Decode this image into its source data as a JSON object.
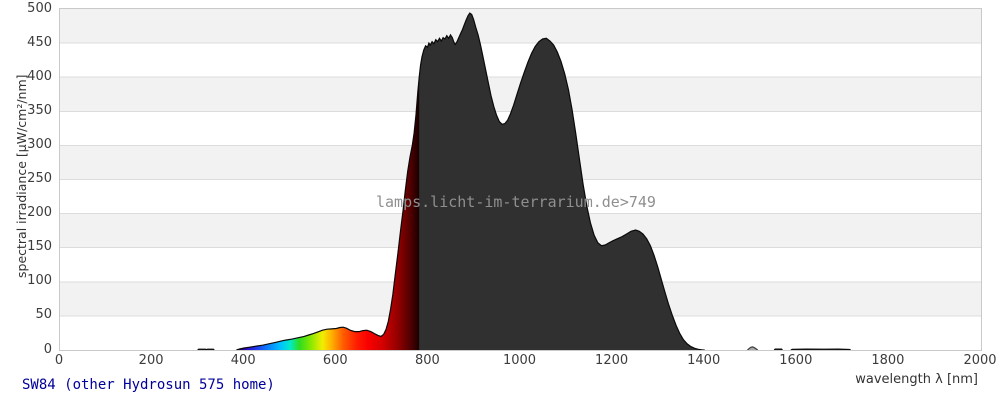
{
  "chart_data": {
    "type": "area",
    "title": "SW84 (other Hydrosun 575 home)",
    "watermark": "lamps.licht-im-terrarium.de>749",
    "xlabel": "wavelength λ [nm]",
    "ylabel": "spectral irradiance [µW/cm²/nm]",
    "xlim": [
      0,
      2000
    ],
    "ylim": [
      0,
      500
    ],
    "x_ticks": [
      0,
      200,
      400,
      600,
      800,
      1000,
      1200,
      1400,
      1600,
      1800,
      2000
    ],
    "y_ticks": [
      0,
      50,
      100,
      150,
      200,
      250,
      300,
      350,
      400,
      450,
      500
    ],
    "y_gridlines": [
      50,
      100,
      150,
      200,
      250,
      300,
      350,
      400,
      450
    ],
    "grid": "horizontal-bands",
    "legend": "none",
    "colors": {
      "ir_fill": "#303030",
      "outline": "#0a0a0a",
      "band_gray": "#f2f2f2",
      "band_white": "#ffffff",
      "gridline": "#dcdcdc",
      "plot_border": "#c9c9c9",
      "tick_text": "#3c3c3c",
      "axis_title_text": "#333333",
      "footer_title_text": "#00009b",
      "watermark_text": "#8f8f8f",
      "ir_bump_fill": "#a8a8a8"
    },
    "spectral_gradient": [
      [
        0.19,
        "#0b0026"
      ],
      [
        0.2,
        "#2b00b4"
      ],
      [
        0.2125,
        "#2136f0"
      ],
      [
        0.225,
        "#0b7bff"
      ],
      [
        0.24,
        "#00c3ff"
      ],
      [
        0.25,
        "#00ecc8"
      ],
      [
        0.26,
        "#2edc1e"
      ],
      [
        0.2725,
        "#8ae800"
      ],
      [
        0.285,
        "#f2ee00"
      ],
      [
        0.295,
        "#ffb000"
      ],
      [
        0.3075,
        "#ff5c00"
      ],
      [
        0.3225,
        "#ff1c00"
      ],
      [
        0.335,
        "#f80000"
      ],
      [
        0.35,
        "#d40000"
      ],
      [
        0.3675,
        "#900000"
      ],
      [
        0.3825,
        "#460000"
      ],
      [
        0.39,
        "#170000"
      ],
      [
        0.3901,
        "#303030"
      ],
      [
        1.0,
        "#303030"
      ]
    ],
    "series": [
      {
        "name": "uv-emission",
        "fill": "#303030",
        "stroke": "#0a0a0a",
        "points": [
          [
            299,
            0
          ],
          [
            301,
            1.2
          ],
          [
            316,
            1.2
          ],
          [
            318,
            0.5
          ],
          [
            320,
            1.2
          ],
          [
            333,
            1.2
          ],
          [
            335,
            0
          ]
        ]
      },
      {
        "name": "main-spectrum",
        "fill": "spectral-gradient",
        "stroke": "#0a0a0a",
        "points": [
          [
            383,
            0
          ],
          [
            390,
            1.5
          ],
          [
            400,
            3
          ],
          [
            410,
            4
          ],
          [
            420,
            5
          ],
          [
            430,
            6
          ],
          [
            440,
            7
          ],
          [
            450,
            8.5
          ],
          [
            460,
            10
          ],
          [
            470,
            11.5
          ],
          [
            480,
            13
          ],
          [
            490,
            14.5
          ],
          [
            500,
            15.5
          ],
          [
            510,
            17
          ],
          [
            520,
            18.5
          ],
          [
            530,
            20
          ],
          [
            540,
            22
          ],
          [
            550,
            24
          ],
          [
            560,
            26.5
          ],
          [
            570,
            29
          ],
          [
            580,
            30.5
          ],
          [
            590,
            31
          ],
          [
            600,
            31.5
          ],
          [
            608,
            33
          ],
          [
            615,
            33.5
          ],
          [
            622,
            32
          ],
          [
            630,
            29
          ],
          [
            640,
            27
          ],
          [
            650,
            27
          ],
          [
            658,
            28.5
          ],
          [
            666,
            29
          ],
          [
            675,
            27
          ],
          [
            683,
            24
          ],
          [
            690,
            21.5
          ],
          [
            697,
            20
          ],
          [
            703,
            23
          ],
          [
            708,
            30
          ],
          [
            713,
            42
          ],
          [
            718,
            60
          ],
          [
            723,
            82
          ],
          [
            728,
            110
          ],
          [
            734,
            143
          ],
          [
            740,
            178
          ],
          [
            745,
            205
          ],
          [
            750,
            235
          ],
          [
            755,
            262
          ],
          [
            760,
            283
          ],
          [
            765,
            300
          ],
          [
            769,
            318
          ],
          [
            773,
            345
          ],
          [
            777,
            378
          ],
          [
            780,
            400
          ],
          [
            783,
            418
          ],
          [
            786,
            430
          ],
          [
            790,
            440
          ],
          [
            794,
            446
          ],
          [
            798,
            444
          ],
          [
            801,
            450
          ],
          [
            804,
            447
          ],
          [
            808,
            452
          ],
          [
            812,
            449
          ],
          [
            816,
            455
          ],
          [
            820,
            452
          ],
          [
            824,
            457
          ],
          [
            828,
            453
          ],
          [
            832,
            458
          ],
          [
            836,
            456
          ],
          [
            840,
            461
          ],
          [
            844,
            457
          ],
          [
            848,
            462
          ],
          [
            852,
            458
          ],
          [
            855,
            452
          ],
          [
            858,
            448
          ],
          [
            862,
            452
          ],
          [
            866,
            458
          ],
          [
            870,
            464
          ],
          [
            874,
            470
          ],
          [
            878,
            477
          ],
          [
            882,
            484
          ],
          [
            886,
            490
          ],
          [
            890,
            494
          ],
          [
            894,
            492
          ],
          [
            898,
            485
          ],
          [
            903,
            473
          ],
          [
            908,
            462
          ],
          [
            913,
            448
          ],
          [
            918,
            432
          ],
          [
            924,
            412
          ],
          [
            930,
            392
          ],
          [
            936,
            373
          ],
          [
            942,
            357
          ],
          [
            948,
            344
          ],
          [
            954,
            335
          ],
          [
            960,
            331
          ],
          [
            966,
            332
          ],
          [
            972,
            337
          ],
          [
            978,
            346
          ],
          [
            985,
            359
          ],
          [
            992,
            374
          ],
          [
            1000,
            391
          ],
          [
            1008,
            407
          ],
          [
            1016,
            422
          ],
          [
            1024,
            435
          ],
          [
            1032,
            445
          ],
          [
            1040,
            452
          ],
          [
            1048,
            456
          ],
          [
            1056,
            457
          ],
          [
            1064,
            453
          ],
          [
            1072,
            447
          ],
          [
            1080,
            437
          ],
          [
            1088,
            423
          ],
          [
            1096,
            405
          ],
          [
            1104,
            382
          ],
          [
            1112,
            352
          ],
          [
            1120,
            317
          ],
          [
            1128,
            280
          ],
          [
            1136,
            243
          ],
          [
            1144,
            211
          ],
          [
            1152,
            186
          ],
          [
            1160,
            168
          ],
          [
            1168,
            157
          ],
          [
            1176,
            153
          ],
          [
            1184,
            154
          ],
          [
            1192,
            157
          ],
          [
            1200,
            160
          ],
          [
            1210,
            163
          ],
          [
            1220,
            166
          ],
          [
            1230,
            170
          ],
          [
            1240,
            174
          ],
          [
            1250,
            176
          ],
          [
            1258,
            174
          ],
          [
            1266,
            170
          ],
          [
            1274,
            163
          ],
          [
            1282,
            153
          ],
          [
            1290,
            139
          ],
          [
            1298,
            122
          ],
          [
            1306,
            103
          ],
          [
            1314,
            84
          ],
          [
            1322,
            66
          ],
          [
            1330,
            50
          ],
          [
            1338,
            36
          ],
          [
            1346,
            24
          ],
          [
            1354,
            15
          ],
          [
            1362,
            9
          ],
          [
            1370,
            5
          ],
          [
            1378,
            2.5
          ],
          [
            1386,
            1
          ],
          [
            1394,
            0.3
          ],
          [
            1400,
            0
          ]
        ]
      },
      {
        "name": "ir-bump-1500",
        "fill": "#a8a8a8",
        "stroke": "#3c3c3c",
        "points": [
          [
            1493,
            0
          ],
          [
            1497,
            2.5
          ],
          [
            1500,
            4
          ],
          [
            1504,
            4.5
          ],
          [
            1508,
            3.5
          ],
          [
            1512,
            1.5
          ],
          [
            1515,
            0
          ]
        ]
      },
      {
        "name": "ir-dash-1560",
        "fill": "#303030",
        "stroke": "#0a0a0a",
        "points": [
          [
            1551,
            0
          ],
          [
            1553,
            1.3
          ],
          [
            1567,
            1.3
          ],
          [
            1569,
            0
          ]
        ]
      },
      {
        "name": "ir-line-1590-1720",
        "fill": "#303030",
        "stroke": "#0a0a0a",
        "points": [
          [
            1587,
            0
          ],
          [
            1590,
            1
          ],
          [
            1620,
            1.3
          ],
          [
            1660,
            1.1
          ],
          [
            1690,
            1.3
          ],
          [
            1714,
            0.8
          ],
          [
            1717,
            0
          ]
        ]
      }
    ]
  }
}
